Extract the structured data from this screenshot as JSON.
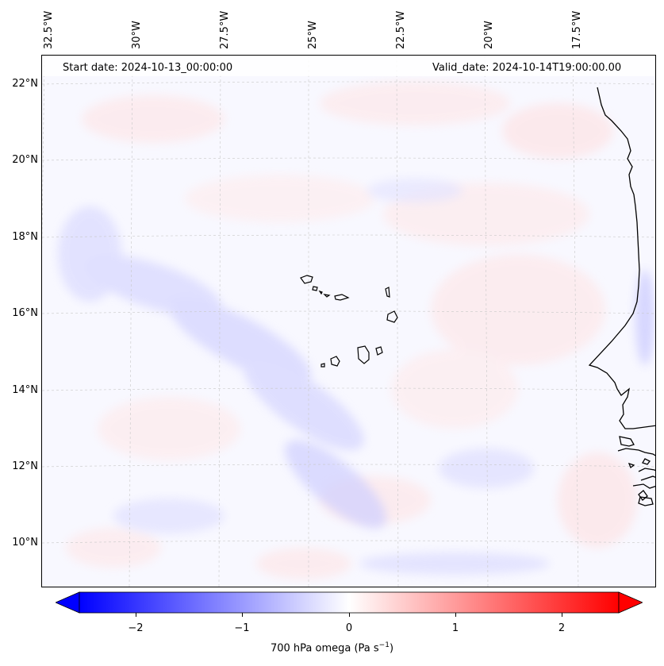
{
  "map": {
    "start_date": "Start date: 2024-10-13_00:00:00",
    "valid_date": "Valid_date: 2024-10-14T19:00:00.00",
    "lon_labels": [
      "32.5°W",
      "30°W",
      "27.5°W",
      "25°W",
      "22.5°W",
      "20°W",
      "17.5°W"
    ],
    "lat_labels": [
      "22°N",
      "20°N",
      "18°N",
      "16°N",
      "14°N",
      "12°N",
      "10°N"
    ],
    "field": "700 hPa omega"
  },
  "colorbar": {
    "label": "700 hPa omega (Pa s",
    "label_sup": "−1",
    "label_end": ")",
    "ticks": [
      "−2",
      "−1",
      "0",
      "1",
      "2"
    ],
    "tick_values": [
      -2,
      -1,
      0,
      1,
      2
    ],
    "range": [
      -2.5,
      2.5
    ],
    "colors": {
      "min": "#0000ff",
      "mid": "#ffffff",
      "max": "#ff0000"
    }
  },
  "colors": {
    "coastline": "#000000",
    "gridline": "#c8c8c8",
    "background": "#f8f8ff"
  }
}
